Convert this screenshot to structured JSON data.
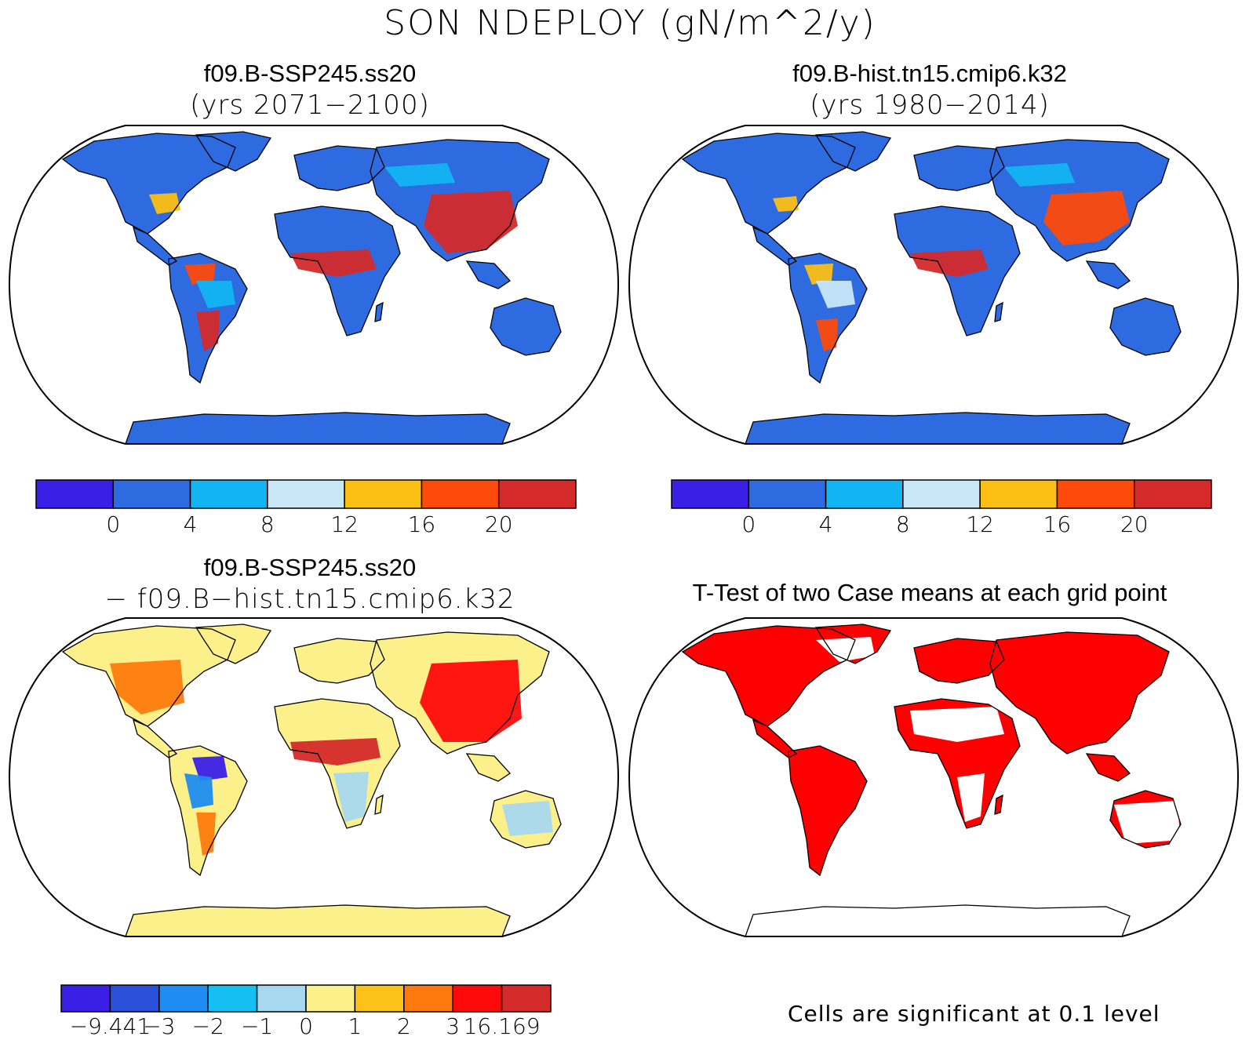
{
  "figure": {
    "title": "SON NDEPLOY (gN/m^2/y)",
    "footnote": "Cells are significant at 0.1 level"
  },
  "panels": [
    {
      "id": "case1",
      "title_line1": "f09.B-SSP245.ss20",
      "title_line2": "(yrs 2071−2100)"
    },
    {
      "id": "case2",
      "title_line1": "f09.B-hist.tn15.cmip6.k32",
      "title_line2": "(yrs 1980−2014)"
    },
    {
      "id": "diff",
      "title_line1": "f09.B-SSP245.ss20",
      "title_line2": "− f09.B−hist.tn15.cmip6.k32"
    },
    {
      "id": "ttest",
      "title_line1": "T-Test of two Case means at each grid point"
    }
  ],
  "colorbars": {
    "abs": {
      "colors": [
        "#3a1fe6",
        "#2f6be0",
        "#12b5f2",
        "#c9e8f7",
        "#fcbf14",
        "#fe4a0a",
        "#d42a2a"
      ],
      "labels": [
        "0",
        "4",
        "8",
        "12",
        "16",
        "20"
      ]
    },
    "diff": {
      "colors": [
        "#3a1fe6",
        "#2a4fd8",
        "#1e8cf0",
        "#14c0f2",
        "#a8d8f0",
        "#fbf08a",
        "#fcc21a",
        "#fe7a0e",
        "#ff0a0a",
        "#d42a2a"
      ],
      "labels": [
        "−9.441",
        "−3",
        "−2",
        "−1",
        "0",
        "1",
        "2",
        "3",
        "16.169"
      ]
    }
  },
  "colors": {
    "significant": "#ff0000",
    "land_outline": "#000000"
  }
}
